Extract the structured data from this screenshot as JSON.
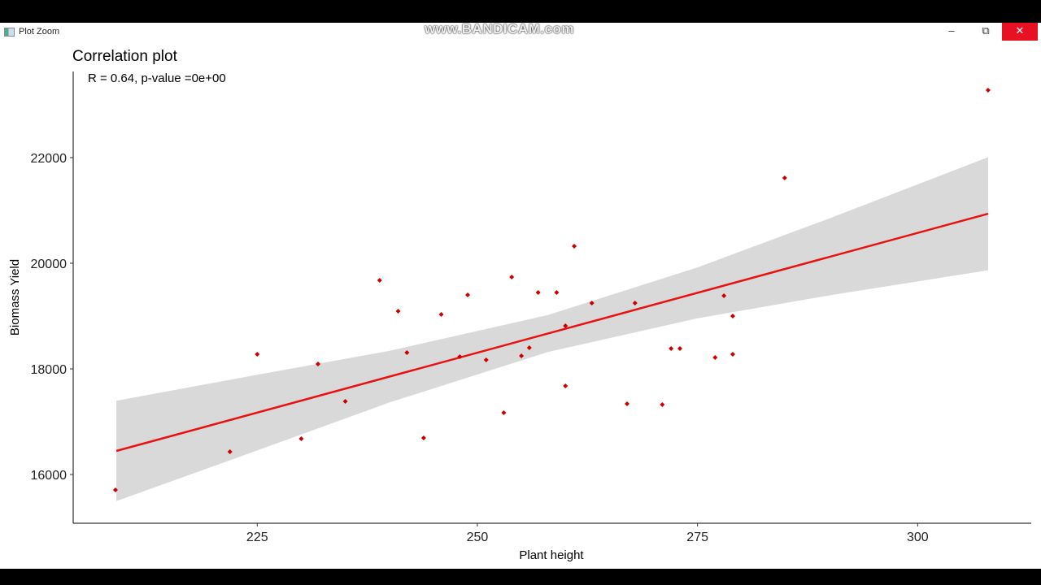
{
  "window": {
    "title": "Plot Zoom",
    "watermark": "www.BANDICAM.com",
    "minimize_label": "–",
    "maximize_label": "⧉",
    "close_label": "✕",
    "icons": {
      "app": "plot-zoom-app-icon",
      "close": "close-icon",
      "restore": "restore-icon",
      "minimize": "minimize-icon"
    }
  },
  "chart_data": {
    "type": "scatter",
    "title": "Correlation plot",
    "annotation": "R = 0.64, p-value =0e+00",
    "xlabel": "Plant height",
    "ylabel": "Biomass Yield",
    "xlim": [
      204.1,
      312.9
    ],
    "ylim": [
      15077,
      23631
    ],
    "xticks": [
      225,
      250,
      275,
      300
    ],
    "yticks": [
      16000,
      18000,
      20000,
      22000
    ],
    "xtick_labels": [
      "225",
      "250",
      "275",
      "300"
    ],
    "ytick_labels": [
      "16000",
      "18000",
      "20000",
      "22000"
    ],
    "grid": false,
    "point_color": "#cc0000",
    "line_color": "#e8110f",
    "band_color": "#d9d9d9",
    "points": [
      [
        208.9,
        15708
      ],
      [
        221.9,
        16431
      ],
      [
        225,
        18277
      ],
      [
        230,
        16677
      ],
      [
        231.9,
        18092
      ],
      [
        235,
        17385
      ],
      [
        238.9,
        19677
      ],
      [
        241,
        19092
      ],
      [
        242,
        18308
      ],
      [
        243.9,
        16692
      ],
      [
        245.9,
        19031
      ],
      [
        248,
        18231
      ],
      [
        248.9,
        19400
      ],
      [
        251,
        18169
      ],
      [
        253,
        17169
      ],
      [
        253.9,
        19738
      ],
      [
        255,
        18246
      ],
      [
        255.9,
        18400
      ],
      [
        256.9,
        19446
      ],
      [
        259,
        19446
      ],
      [
        260,
        17677
      ],
      [
        260,
        18815
      ],
      [
        261,
        20323
      ],
      [
        263,
        19246
      ],
      [
        267,
        17338
      ],
      [
        267.9,
        19246
      ],
      [
        271,
        17323
      ],
      [
        272,
        18385
      ],
      [
        273,
        18385
      ],
      [
        277,
        18215
      ],
      [
        278,
        19385
      ],
      [
        279,
        19000
      ],
      [
        279,
        18277
      ],
      [
        284.9,
        21615
      ],
      [
        308,
        23277
      ]
    ],
    "regression": {
      "x": [
        209,
        308
      ],
      "y": [
        16446,
        20938
      ]
    },
    "confidence_band": {
      "x": [
        209,
        225,
        240,
        258,
        275,
        290,
        308
      ],
      "lower": [
        15496,
        16455,
        17363,
        18319,
        18958,
        19392,
        19868
      ],
      "upper": [
        17396,
        17889,
        18341,
        19019,
        19922,
        20850,
        22008
      ]
    }
  }
}
